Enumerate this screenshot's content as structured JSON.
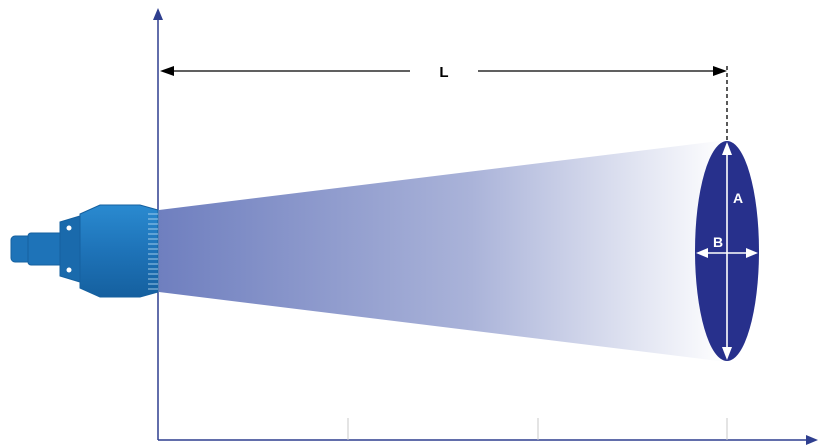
{
  "labels": {
    "length": "L",
    "major_axis": "A",
    "minor_axis": "B"
  },
  "colors": {
    "axis": "#2f3f8f",
    "spray_start": "#6f7fbf",
    "spray_end": "#ffffff",
    "spray_pattern": "#27308c",
    "nozzle_body": "#1e73b8",
    "nozzle_dark": "#17599a",
    "dimension_line": "#000000",
    "axis_arrows_on_pattern": "#ffffff"
  }
}
